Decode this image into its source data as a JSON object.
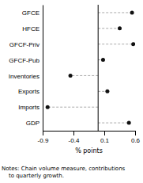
{
  "chart_data": {
    "type": "dot",
    "categories": [
      "GFCE",
      "HFCE",
      "GFCF-Priv",
      "GFCF-Pub",
      "Inventories",
      "Exports",
      "Imports",
      "GDP"
    ],
    "values": [
      0.55,
      0.35,
      0.57,
      0.08,
      -0.45,
      0.15,
      -0.82,
      0.5
    ],
    "xlim": [
      -0.9,
      0.6
    ],
    "xticks": [
      -0.9,
      -0.4,
      0.1,
      0.6
    ],
    "xlabel": "% points",
    "zero_line": 0.0,
    "color": "#111111",
    "line_style": "dashed",
    "orientation": "horizontal",
    "annotations": [
      "Notes: Chain volume measure, contributions",
      "    to quarterly growth."
    ]
  }
}
